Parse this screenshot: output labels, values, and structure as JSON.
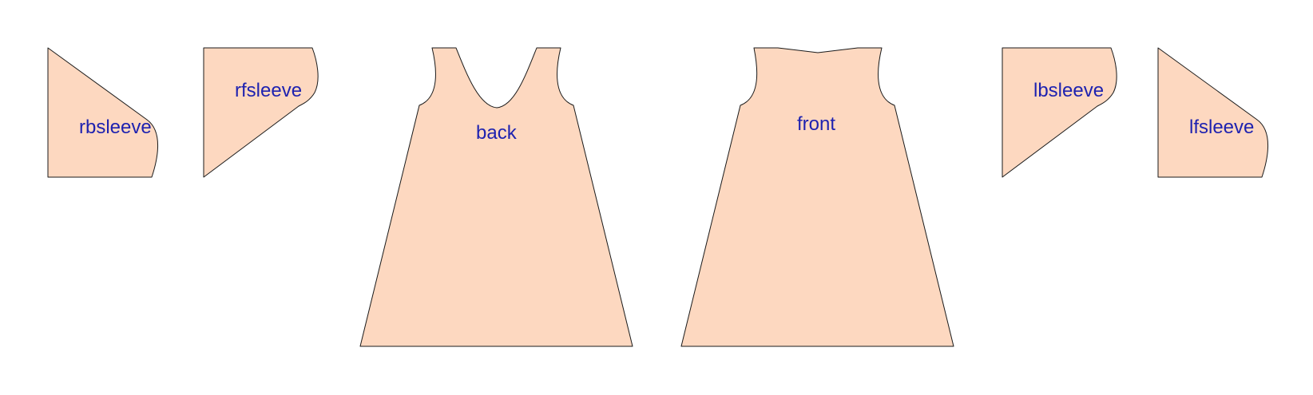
{
  "colors": {
    "piece_fill": "#fdd8c0",
    "outline": "#1a1a1a",
    "label_text": "#1e22b0",
    "background": "#ffffff"
  },
  "pieces": {
    "rbsleeve": {
      "label": "rbsleeve"
    },
    "rfsleeve": {
      "label": "rfsleeve"
    },
    "back": {
      "label": "back"
    },
    "front": {
      "label": "front"
    },
    "lbsleeve": {
      "label": "lbsleeve"
    },
    "lfsleeve": {
      "label": "lfsleeve"
    }
  }
}
